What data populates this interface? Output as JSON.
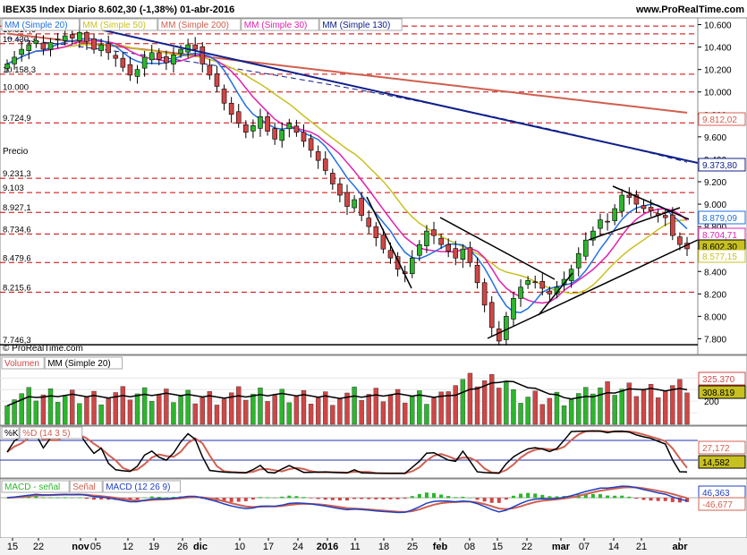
{
  "header": {
    "title": "IBEX35 Index  Diario  8.602,30 (-1,38%)  01-abr-2016",
    "website": "www.ProRealTime.com"
  },
  "colors": {
    "up": "#2db52d",
    "down": "#d04646",
    "ma20": "#1f6fe0",
    "ma50": "#c8c020",
    "ma200": "#d06050",
    "ma30": "#e020b0",
    "ma130": "#10208a",
    "resistance": "#cc0000"
  },
  "price_panel": {
    "legend": [
      {
        "label": "MM (Simple 20)",
        "color": "#1f6fe0"
      },
      {
        "label": "MM (Simple 50)",
        "color": "#c8c020"
      },
      {
        "label": "MM (Simple 200)",
        "color": "#d06050"
      },
      {
        "label": "MM (Simple 30)",
        "color": "#e020b0"
      },
      {
        "label": "MM (Simple 130)",
        "color": "#10208a"
      }
    ],
    "corner_label": "Precio",
    "copyright": "© ProRealTime.com",
    "left_levels": [
      "10.587",
      "10.517,6",
      "10.430,3",
      "10.158,3",
      "10.000",
      "9.724,9",
      "9.231,3",
      "9.103",
      "8.927,1",
      "8.734,6",
      "8.479,6",
      "8.215,6",
      "7.746,3"
    ],
    "right_ticks": [
      "10.600",
      "10.400",
      "10.200",
      "10.000",
      "9.800",
      "9.600",
      "9.400",
      "9.200",
      "9.000",
      "8.800",
      "8.600",
      "8.400",
      "8.200",
      "8.000",
      "7.800"
    ],
    "badges": [
      {
        "text": "9.812,02",
        "color": "#d06050"
      },
      {
        "text": "9.373,80",
        "color": "#10208a"
      },
      {
        "text": "8.879,09",
        "color": "#1f6fe0"
      },
      {
        "text": "8.704,71",
        "color": "#e020b0"
      },
      {
        "text": "8.602,30",
        "color": "#000000"
      },
      {
        "text": "8.577,15",
        "color": "#c8c020"
      }
    ]
  },
  "volume_panel": {
    "legend": [
      {
        "label": "Volumen",
        "color": "#d04646"
      },
      {
        "label": "MM (Simple 20)",
        "color": "#000000"
      }
    ],
    "right_ticks": [
      "400",
      "200"
    ],
    "badges": [
      {
        "text": "325.370",
        "color": "#d04646"
      },
      {
        "text": "308.819",
        "color": "#000000"
      }
    ]
  },
  "stoch_panel": {
    "legend": [
      {
        "label": "%K",
        "color": "#000000"
      },
      {
        "label": "%D (14 3 5)",
        "color": "#d06050"
      }
    ],
    "badges": [
      {
        "text": "27,172",
        "color": "#d06050"
      },
      {
        "text": "14,582",
        "color": "#000000"
      }
    ]
  },
  "macd_panel": {
    "legend": [
      {
        "label": "MACD - señal",
        "color": "#2db52d"
      },
      {
        "label": "Señal",
        "color": "#d06050"
      },
      {
        "label": "MACD (12 26 9)",
        "color": "#1f3fc0"
      }
    ],
    "badges": [
      {
        "text": "46,363",
        "color": "#1f3fc0"
      },
      {
        "text": "-46,677",
        "color": "#d06050"
      }
    ]
  },
  "x_axis": [
    "15",
    "22",
    "nov",
    "05",
    "12",
    "19",
    "26",
    "dic",
    "10",
    "17",
    "24",
    "2016",
    "11",
    "18",
    "25",
    "feb",
    "08",
    "15",
    "22",
    "mar",
    "07",
    "14",
    "21",
    "abr"
  ],
  "chart_data": {
    "type": "candlestick",
    "title": "IBEX35 Index  Diario  8.602,30 (-1,38%)  01-abr-2016",
    "ylim": [
      7750,
      10600
    ],
    "resistance_levels": [
      10587,
      10517.6,
      10430.3,
      10158.3,
      10000,
      9724.9,
      9231.3,
      9103,
      8927.1,
      8734.6,
      8479.6,
      8215.6,
      7746.3
    ],
    "last": {
      "close": 8602.3,
      "change_pct": -1.38,
      "date": "01-abr-2016",
      "ma20": 8879.09,
      "ma30": 8704.71,
      "ma50": 8577.15,
      "ma130": 9373.8,
      "ma200": 9812.02,
      "volume": 325370,
      "volume_ma20": 308819,
      "stoch_k": 14.582,
      "stoch_d": 27.172,
      "macd": 46.363,
      "macd_signal_diff": -46.677
    },
    "closes": [
      10250,
      10310,
      10380,
      10420,
      10460,
      10380,
      10440,
      10470,
      10500,
      10480,
      10530,
      10450,
      10380,
      10420,
      10350,
      10300,
      10220,
      10150,
      10200,
      10310,
      10350,
      10290,
      10260,
      10330,
      10380,
      10420,
      10380,
      10250,
      10150,
      10050,
      9900,
      9800,
      9720,
      9640,
      9700,
      9780,
      9650,
      9580,
      9660,
      9720,
      9640,
      9560,
      9480,
      9390,
      9300,
      9180,
      9080,
      8980,
      9040,
      8900,
      8800,
      8700,
      8600,
      8520,
      8420,
      8380,
      8520,
      8640,
      8760,
      8720,
      8640,
      8580,
      8520,
      8600,
      8480,
      8300,
      8100,
      7900,
      7780,
      8000,
      8160,
      8260,
      8320,
      8300,
      8250,
      8200,
      8260,
      8330,
      8420,
      8560,
      8680,
      8760,
      8860,
      8840,
      8960,
      9080,
      9060,
      9000,
      8960,
      8940,
      8900,
      8880,
      8720,
      8640,
      8602
    ]
  }
}
